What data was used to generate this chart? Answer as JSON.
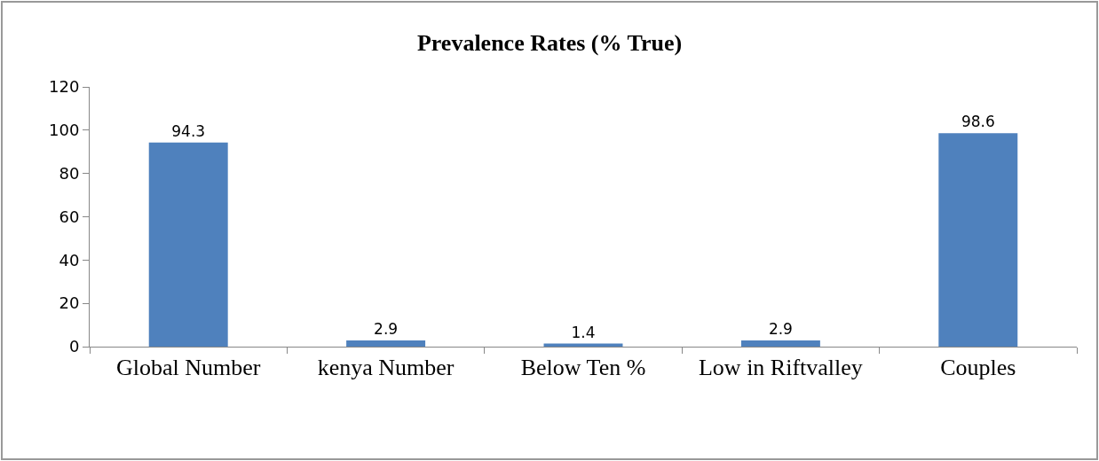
{
  "chart_data": {
    "type": "bar",
    "title": "Prevalence Rates (% True)",
    "categories": [
      "Global Number",
      "kenya Number",
      "Below Ten %",
      "Low in Riftvalley",
      "Couples"
    ],
    "values": [
      94.3,
      2.9,
      1.4,
      2.9,
      98.6
    ],
    "color": "#4f81bd",
    "ylim": [
      0,
      120
    ],
    "yticks": [
      0,
      20,
      40,
      60,
      80,
      100,
      120
    ],
    "grid": false,
    "legend": false,
    "data_labels": true
  }
}
